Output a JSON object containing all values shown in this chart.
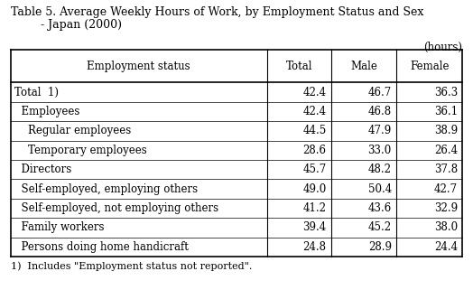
{
  "title_line1": "Table 5. Average Weekly Hours of Work, by Employment Status and Sex",
  "title_line2": "- Japan (2000)",
  "units_label": "(hours)",
  "footnote": "1)  Includes \"Employment status not reported\".",
  "col_headers": [
    "Employment status",
    "Total",
    "Male",
    "Female"
  ],
  "rows": [
    {
      "label": "Total  1)",
      "indent": 0,
      "total": "42.4",
      "male": "46.7",
      "female": "36.3"
    },
    {
      "label": "  Employees",
      "indent": 0,
      "total": "42.4",
      "male": "46.8",
      "female": "36.1"
    },
    {
      "label": "    Regular employees",
      "indent": 0,
      "total": "44.5",
      "male": "47.9",
      "female": "38.9"
    },
    {
      "label": "    Temporary employees",
      "indent": 0,
      "total": "28.6",
      "male": "33.0",
      "female": "26.4"
    },
    {
      "label": "  Directors",
      "indent": 0,
      "total": "45.7",
      "male": "48.2",
      "female": "37.8"
    },
    {
      "label": "  Self-employed, employing others",
      "indent": 0,
      "total": "49.0",
      "male": "50.4",
      "female": "42.7"
    },
    {
      "label": "  Self-employed, not employing others",
      "indent": 0,
      "total": "41.2",
      "male": "43.6",
      "female": "32.9"
    },
    {
      "label": "  Family workers",
      "indent": 0,
      "total": "39.4",
      "male": "45.2",
      "female": "38.0"
    },
    {
      "label": "  Persons doing home handicraft",
      "indent": 0,
      "total": "24.8",
      "male": "28.9",
      "female": "24.4"
    }
  ],
  "bg_color": "#ffffff",
  "text_color": "#000000",
  "font_family": "DejaVu Serif",
  "title_fontsize": 9.0,
  "header_fontsize": 8.5,
  "data_fontsize": 8.5,
  "footnote_fontsize": 8.0
}
